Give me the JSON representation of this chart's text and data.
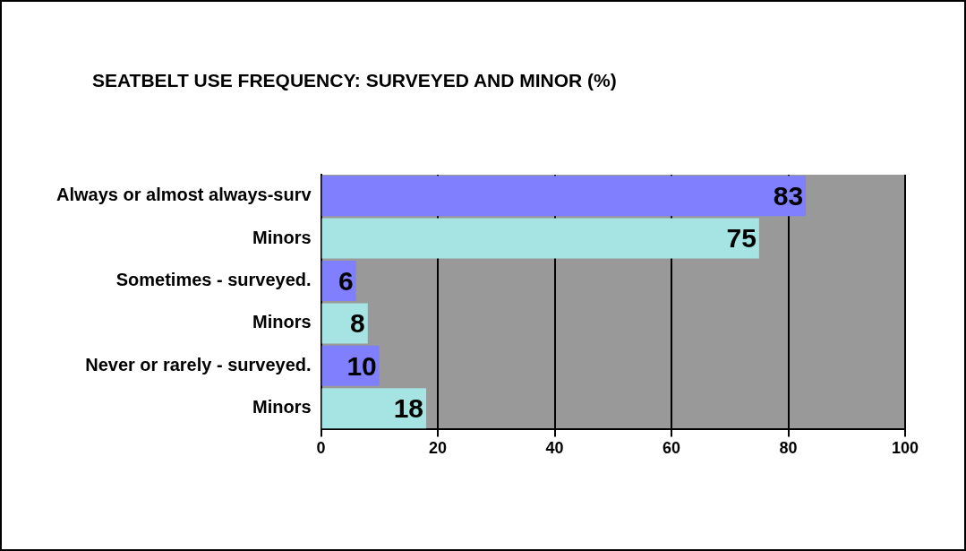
{
  "chart_data": {
    "type": "bar",
    "orientation": "horizontal",
    "title": "SEATBELT USE FREQUENCY: SURVEYED AND MINOR (%)",
    "categories": [
      "Always or almost always-surv",
      "Minors",
      "Sometimes - surveyed.",
      "Minors",
      "Never or rarely - surveyed.",
      "Minors"
    ],
    "values": [
      83,
      75,
      6,
      8,
      10,
      18
    ],
    "colors": [
      "#8080ff",
      "#a6e3e3",
      "#8080ff",
      "#a6e3e3",
      "#8080ff",
      "#a6e3e3"
    ],
    "xlim": [
      0,
      100
    ],
    "xticks": [
      0,
      20,
      40,
      60,
      80,
      100
    ],
    "grid": "x",
    "data_labels": true,
    "legend": false
  }
}
